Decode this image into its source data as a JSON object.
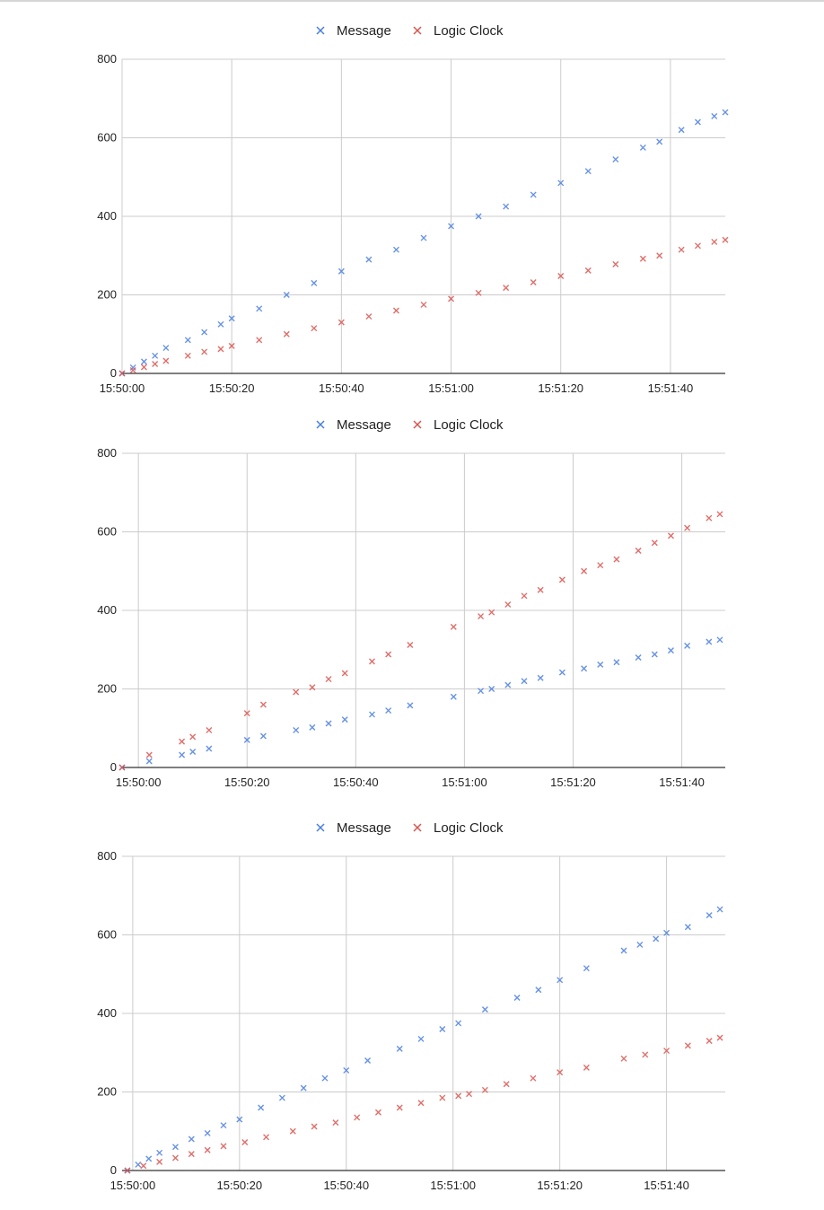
{
  "chart_data": [
    {
      "type": "scatter",
      "legend_position": "top",
      "grid": true,
      "ylim": [
        0,
        800
      ],
      "yticks": [
        0,
        200,
        400,
        600,
        800
      ],
      "xlim": [
        "15:50:00",
        "15:51:50"
      ],
      "xticks": [
        "15:50:00",
        "15:50:20",
        "15:50:40",
        "15:51:00",
        "15:51:20",
        "15:51:40"
      ],
      "series": [
        {
          "name": "Message",
          "color": "#4a7ee0",
          "points": [
            [
              "15:50:00",
              0
            ],
            [
              "15:50:02",
              15
            ],
            [
              "15:50:04",
              30
            ],
            [
              "15:50:06",
              45
            ],
            [
              "15:50:08",
              65
            ],
            [
              "15:50:12",
              85
            ],
            [
              "15:50:15",
              105
            ],
            [
              "15:50:18",
              125
            ],
            [
              "15:50:20",
              140
            ],
            [
              "15:50:25",
              165
            ],
            [
              "15:50:30",
              200
            ],
            [
              "15:50:35",
              230
            ],
            [
              "15:50:40",
              260
            ],
            [
              "15:50:45",
              290
            ],
            [
              "15:50:50",
              315
            ],
            [
              "15:50:55",
              345
            ],
            [
              "15:51:00",
              375
            ],
            [
              "15:51:05",
              400
            ],
            [
              "15:51:10",
              425
            ],
            [
              "15:51:15",
              455
            ],
            [
              "15:51:20",
              485
            ],
            [
              "15:51:25",
              515
            ],
            [
              "15:51:30",
              545
            ],
            [
              "15:51:35",
              575
            ],
            [
              "15:51:38",
              590
            ],
            [
              "15:51:42",
              620
            ],
            [
              "15:51:45",
              640
            ],
            [
              "15:51:48",
              655
            ],
            [
              "15:51:50",
              665
            ]
          ]
        },
        {
          "name": "Logic Clock",
          "color": "#d9534f",
          "points": [
            [
              "15:50:00",
              0
            ],
            [
              "15:50:02",
              8
            ],
            [
              "15:50:04",
              16
            ],
            [
              "15:50:06",
              24
            ],
            [
              "15:50:08",
              32
            ],
            [
              "15:50:12",
              45
            ],
            [
              "15:50:15",
              55
            ],
            [
              "15:50:18",
              62
            ],
            [
              "15:50:20",
              70
            ],
            [
              "15:50:25",
              85
            ],
            [
              "15:50:30",
              100
            ],
            [
              "15:50:35",
              115
            ],
            [
              "15:50:40",
              130
            ],
            [
              "15:50:45",
              145
            ],
            [
              "15:50:50",
              160
            ],
            [
              "15:50:55",
              175
            ],
            [
              "15:51:00",
              190
            ],
            [
              "15:51:05",
              205
            ],
            [
              "15:51:10",
              218
            ],
            [
              "15:51:15",
              232
            ],
            [
              "15:51:20",
              248
            ],
            [
              "15:51:25",
              262
            ],
            [
              "15:51:30",
              278
            ],
            [
              "15:51:35",
              292
            ],
            [
              "15:51:38",
              300
            ],
            [
              "15:51:42",
              315
            ],
            [
              "15:51:45",
              325
            ],
            [
              "15:51:48",
              335
            ],
            [
              "15:51:50",
              340
            ]
          ]
        }
      ]
    },
    {
      "type": "scatter",
      "legend_position": "top",
      "grid": true,
      "ylim": [
        0,
        800
      ],
      "yticks": [
        0,
        200,
        400,
        600,
        800
      ],
      "xlim": [
        "15:49:57",
        "15:51:48"
      ],
      "xticks": [
        "15:50:00",
        "15:50:20",
        "15:50:40",
        "15:51:00",
        "15:51:20",
        "15:51:40"
      ],
      "series": [
        {
          "name": "Message",
          "color": "#4a7ee0",
          "points": [
            [
              "15:49:57",
              0
            ],
            [
              "15:50:02",
              16
            ],
            [
              "15:50:08",
              32
            ],
            [
              "15:50:10",
              40
            ],
            [
              "15:50:13",
              48
            ],
            [
              "15:50:20",
              70
            ],
            [
              "15:50:23",
              80
            ],
            [
              "15:50:29",
              95
            ],
            [
              "15:50:32",
              102
            ],
            [
              "15:50:35",
              112
            ],
            [
              "15:50:38",
              122
            ],
            [
              "15:50:43",
              135
            ],
            [
              "15:50:46",
              145
            ],
            [
              "15:50:50",
              158
            ],
            [
              "15:50:58",
              180
            ],
            [
              "15:51:03",
              195
            ],
            [
              "15:51:05",
              200
            ],
            [
              "15:51:08",
              210
            ],
            [
              "15:51:11",
              220
            ],
            [
              "15:51:14",
              228
            ],
            [
              "15:51:18",
              242
            ],
            [
              "15:51:22",
              252
            ],
            [
              "15:51:25",
              262
            ],
            [
              "15:51:28",
              268
            ],
            [
              "15:51:32",
              280
            ],
            [
              "15:51:35",
              288
            ],
            [
              "15:51:38",
              298
            ],
            [
              "15:51:41",
              310
            ],
            [
              "15:51:45",
              320
            ],
            [
              "15:51:47",
              325
            ]
          ]
        },
        {
          "name": "Logic Clock",
          "color": "#d9534f",
          "points": [
            [
              "15:49:57",
              0
            ],
            [
              "15:50:02",
              32
            ],
            [
              "15:50:08",
              66
            ],
            [
              "15:50:10",
              78
            ],
            [
              "15:50:13",
              95
            ],
            [
              "15:50:20",
              138
            ],
            [
              "15:50:23",
              160
            ],
            [
              "15:50:29",
              192
            ],
            [
              "15:50:32",
              204
            ],
            [
              "15:50:35",
              225
            ],
            [
              "15:50:38",
              240
            ],
            [
              "15:50:43",
              270
            ],
            [
              "15:50:46",
              288
            ],
            [
              "15:50:50",
              312
            ],
            [
              "15:50:58",
              358
            ],
            [
              "15:51:03",
              385
            ],
            [
              "15:51:05",
              395
            ],
            [
              "15:51:08",
              415
            ],
            [
              "15:51:11",
              437
            ],
            [
              "15:51:14",
              452
            ],
            [
              "15:51:18",
              478
            ],
            [
              "15:51:22",
              500
            ],
            [
              "15:51:25",
              515
            ],
            [
              "15:51:28",
              530
            ],
            [
              "15:51:32",
              552
            ],
            [
              "15:51:35",
              572
            ],
            [
              "15:51:38",
              590
            ],
            [
              "15:51:41",
              610
            ],
            [
              "15:51:45",
              635
            ],
            [
              "15:51:47",
              645
            ]
          ]
        }
      ]
    },
    {
      "type": "scatter",
      "legend_position": "top",
      "grid": true,
      "ylim": [
        0,
        800
      ],
      "yticks": [
        0,
        200,
        400,
        600,
        800
      ],
      "xlim": [
        "15:49:58",
        "15:51:51"
      ],
      "xticks": [
        "15:50:00",
        "15:50:20",
        "15:50:40",
        "15:51:00",
        "15:51:20",
        "15:51:40"
      ],
      "series": [
        {
          "name": "Message",
          "color": "#4a7ee0",
          "points": [
            [
              "15:49:59",
              0
            ],
            [
              "15:50:01",
              15
            ],
            [
              "15:50:03",
              30
            ],
            [
              "15:50:05",
              45
            ],
            [
              "15:50:08",
              60
            ],
            [
              "15:50:11",
              80
            ],
            [
              "15:50:14",
              95
            ],
            [
              "15:50:17",
              115
            ],
            [
              "15:50:20",
              130
            ],
            [
              "15:50:24",
              160
            ],
            [
              "15:50:28",
              185
            ],
            [
              "15:50:32",
              210
            ],
            [
              "15:50:36",
              235
            ],
            [
              "15:50:40",
              255
            ],
            [
              "15:50:44",
              280
            ],
            [
              "15:50:50",
              310
            ],
            [
              "15:50:54",
              335
            ],
            [
              "15:50:58",
              360
            ],
            [
              "15:51:01",
              375
            ],
            [
              "15:51:06",
              410
            ],
            [
              "15:51:12",
              440
            ],
            [
              "15:51:16",
              460
            ],
            [
              "15:51:20",
              485
            ],
            [
              "15:51:25",
              515
            ],
            [
              "15:51:32",
              560
            ],
            [
              "15:51:35",
              575
            ],
            [
              "15:51:38",
              590
            ],
            [
              "15:51:40",
              605
            ],
            [
              "15:51:44",
              620
            ],
            [
              "15:51:48",
              650
            ],
            [
              "15:51:50",
              665
            ]
          ]
        },
        {
          "name": "Logic Clock",
          "color": "#d9534f",
          "points": [
            [
              "15:49:59",
              0
            ],
            [
              "15:50:02",
              12
            ],
            [
              "15:50:05",
              22
            ],
            [
              "15:50:08",
              32
            ],
            [
              "15:50:11",
              42
            ],
            [
              "15:50:14",
              52
            ],
            [
              "15:50:17",
              62
            ],
            [
              "15:50:21",
              72
            ],
            [
              "15:50:25",
              85
            ],
            [
              "15:50:30",
              100
            ],
            [
              "15:50:34",
              112
            ],
            [
              "15:50:38",
              122
            ],
            [
              "15:50:42",
              135
            ],
            [
              "15:50:46",
              148
            ],
            [
              "15:50:50",
              160
            ],
            [
              "15:50:54",
              172
            ],
            [
              "15:50:58",
              185
            ],
            [
              "15:51:01",
              190
            ],
            [
              "15:51:03",
              195
            ],
            [
              "15:51:06",
              205
            ],
            [
              "15:51:10",
              220
            ],
            [
              "15:51:15",
              235
            ],
            [
              "15:51:20",
              250
            ],
            [
              "15:51:25",
              262
            ],
            [
              "15:51:32",
              285
            ],
            [
              "15:51:36",
              295
            ],
            [
              "15:51:40",
              305
            ],
            [
              "15:51:44",
              318
            ],
            [
              "15:51:48",
              330
            ],
            [
              "15:51:50",
              338
            ]
          ]
        }
      ]
    }
  ]
}
